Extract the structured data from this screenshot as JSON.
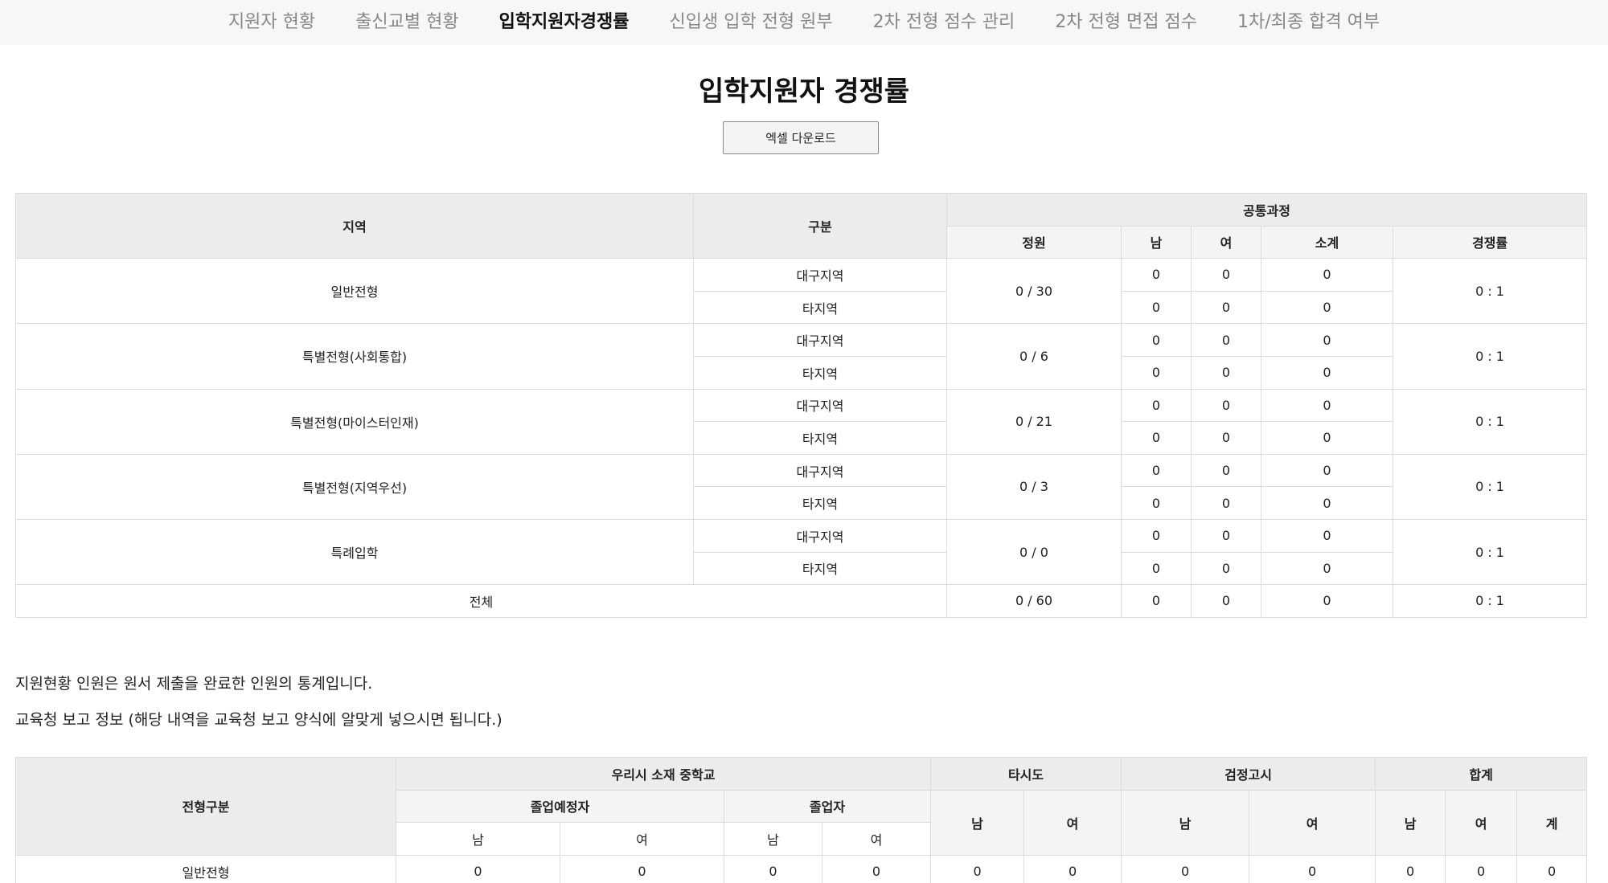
{
  "nav": {
    "tabs": [
      "지원자 현황",
      "출신교별 현황",
      "입학지원자경쟁률",
      "신입생 입학 전형 원부",
      "2차 전형 점수 관리",
      "2차 전형 면접 점수",
      "1차/최종 합격 여부"
    ],
    "active_index": 2
  },
  "page": {
    "title": "입학지원자 경쟁률",
    "excel_button": "엑셀 다운로드"
  },
  "competition_table": {
    "headers": {
      "region": "지역",
      "category": "구분",
      "group": "공통과정",
      "quota": "정원",
      "male": "남",
      "female": "여",
      "subtotal": "소계",
      "ratio": "경쟁률"
    },
    "rows": [
      {
        "type": "일반전형",
        "quota": "0 / 30",
        "ratio": "0 : 1",
        "sub": [
          {
            "area": "대구지역",
            "male": "0",
            "female": "0",
            "subtotal": "0"
          },
          {
            "area": "타지역",
            "male": "0",
            "female": "0",
            "subtotal": "0"
          }
        ]
      },
      {
        "type": "특별전형(사회통합)",
        "quota": "0 / 6",
        "ratio": "0 : 1",
        "sub": [
          {
            "area": "대구지역",
            "male": "0",
            "female": "0",
            "subtotal": "0"
          },
          {
            "area": "타지역",
            "male": "0",
            "female": "0",
            "subtotal": "0"
          }
        ]
      },
      {
        "type": "특별전형(마이스터인재)",
        "quota": "0 / 21",
        "ratio": "0 : 1",
        "sub": [
          {
            "area": "대구지역",
            "male": "0",
            "female": "0",
            "subtotal": "0"
          },
          {
            "area": "타지역",
            "male": "0",
            "female": "0",
            "subtotal": "0"
          }
        ]
      },
      {
        "type": "특별전형(지역우선)",
        "quota": "0 / 3",
        "ratio": "0 : 1",
        "sub": [
          {
            "area": "대구지역",
            "male": "0",
            "female": "0",
            "subtotal": "0"
          },
          {
            "area": "타지역",
            "male": "0",
            "female": "0",
            "subtotal": "0"
          }
        ]
      },
      {
        "type": "특례입학",
        "quota": "0 / 0",
        "ratio": "0 : 1",
        "sub": [
          {
            "area": "대구지역",
            "male": "0",
            "female": "0",
            "subtotal": "0"
          },
          {
            "area": "타지역",
            "male": "0",
            "female": "0",
            "subtotal": "0"
          }
        ]
      }
    ],
    "total": {
      "label": "전체",
      "quota": "0 / 60",
      "male": "0",
      "female": "0",
      "subtotal": "0",
      "ratio": "0 : 1"
    }
  },
  "notes": {
    "line1": "지원현황 인원은 원서 제출을 완료한 인원의 통계입니다.",
    "line2": "교육청 보고 정보 (해당 내역을 교육청 보고 양식에 알맞게 넣으시면 됩니다.)"
  },
  "report_table": {
    "headers": {
      "type": "전형구분",
      "local_school": "우리시 소재 중학교",
      "expected_grad": "졸업예정자",
      "graduate": "졸업자",
      "other_city": "타시도",
      "ged": "검정고시",
      "sum": "합계",
      "male": "남",
      "female": "여",
      "total": "계"
    },
    "rows": [
      {
        "type": "일반전형",
        "values": [
          "0",
          "0",
          "0",
          "0",
          "0",
          "0",
          "0",
          "0",
          "0",
          "0",
          "0"
        ]
      }
    ]
  }
}
